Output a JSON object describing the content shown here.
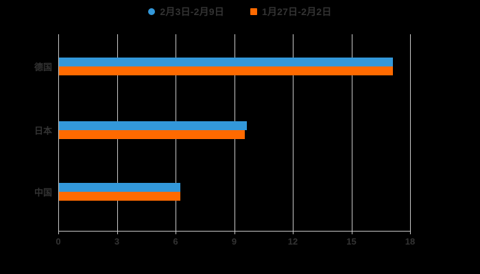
{
  "colors": {
    "background": "#000000",
    "axis": "#cccccc",
    "label_text": "#333333",
    "series_blue": "#3398da",
    "series_orange": "#ff6a00"
  },
  "legend": {
    "position": "top",
    "items": [
      {
        "label": "2月3日-2月9日",
        "marker": "circle",
        "color": "#3398da"
      },
      {
        "label": "1月27日-2月2日",
        "marker": "square",
        "color": "#ff6a00"
      }
    ]
  },
  "chart_data": {
    "type": "bar",
    "orientation": "horizontal",
    "title": "",
    "xlabel": "",
    "ylabel": "",
    "categories": [
      "德国",
      "日本",
      "中国"
    ],
    "series": [
      {
        "name": "2月3日-2月9日",
        "color": "#3398da",
        "marker": "circle",
        "values": [
          17.1,
          9.6,
          6.2
        ]
      },
      {
        "name": "1月27日-2月2日",
        "color": "#ff6a00",
        "marker": "square",
        "values": [
          17.1,
          9.5,
          6.2
        ]
      }
    ],
    "xticks": [
      0,
      3,
      6,
      9,
      12,
      15,
      18
    ],
    "xlim": [
      0,
      18
    ],
    "grid": true,
    "legend_position": "top-center"
  }
}
